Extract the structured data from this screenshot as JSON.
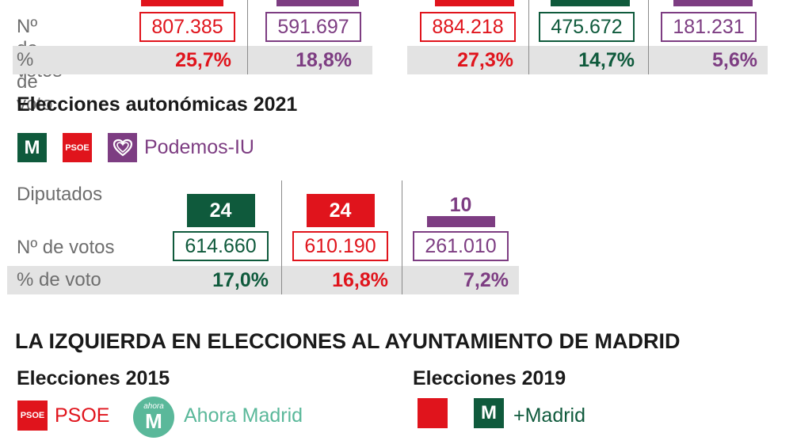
{
  "colors": {
    "psoe": "#e0141c",
    "mas_madrid": "#0f5a3c",
    "podemos": "#7d3d82",
    "band": "#e3e3e3"
  },
  "top_left": {
    "votes": [
      "807.385",
      "591.697"
    ],
    "pcts": [
      "25,7%",
      "18,8%"
    ]
  },
  "top_right": {
    "votes": [
      "884.218",
      "475.672",
      "181.231"
    ],
    "pcts": [
      "27,3%",
      "14,7%",
      "5,6%"
    ]
  },
  "labels": {
    "votos": "Nº de votos",
    "pct_voto": "% de voto",
    "diputados": "Diputados"
  },
  "autonomicas_2021": {
    "heading": "Elecciones autonómicas 2021",
    "legend": {
      "mas_madrid_icon": "M",
      "psoe_icon": "PSOE",
      "podemos_label": "Podemos-IU"
    }
  },
  "ayuntamiento": {
    "heading": "LA IZQUIERDA EN ELECCIONES AL AYUNTAMIENTO DE MADRID",
    "e2015": {
      "heading": "Elecciones 2015",
      "psoe_icon": "PSOE",
      "psoe_label": "PSOE",
      "ahora_icon_top": "ahora",
      "ahora_icon_letter": "M",
      "ahora_label": "Ahora Madrid"
    },
    "e2019": {
      "heading": "Elecciones 2019",
      "mas_madrid_icon": "M",
      "mas_madrid_label": "+Madrid"
    }
  },
  "chart_data": {
    "type": "table",
    "title": "Elecciones autonómicas 2021",
    "row_labels": [
      "Diputados",
      "Nº de votos",
      "% de voto"
    ],
    "columns": [
      {
        "party": "Más Madrid",
        "color": "#0f5a3c",
        "diputados": 24,
        "votos": "614.660",
        "pct": "17,0%"
      },
      {
        "party": "PSOE",
        "color": "#e0141c",
        "diputados": 24,
        "votos": "610.190",
        "pct": "16,8%"
      },
      {
        "party": "Podemos-IU",
        "color": "#7d3d82",
        "diputados": 10,
        "votos": "261.010",
        "pct": "7,2%"
      }
    ],
    "diputados_max": 24
  }
}
